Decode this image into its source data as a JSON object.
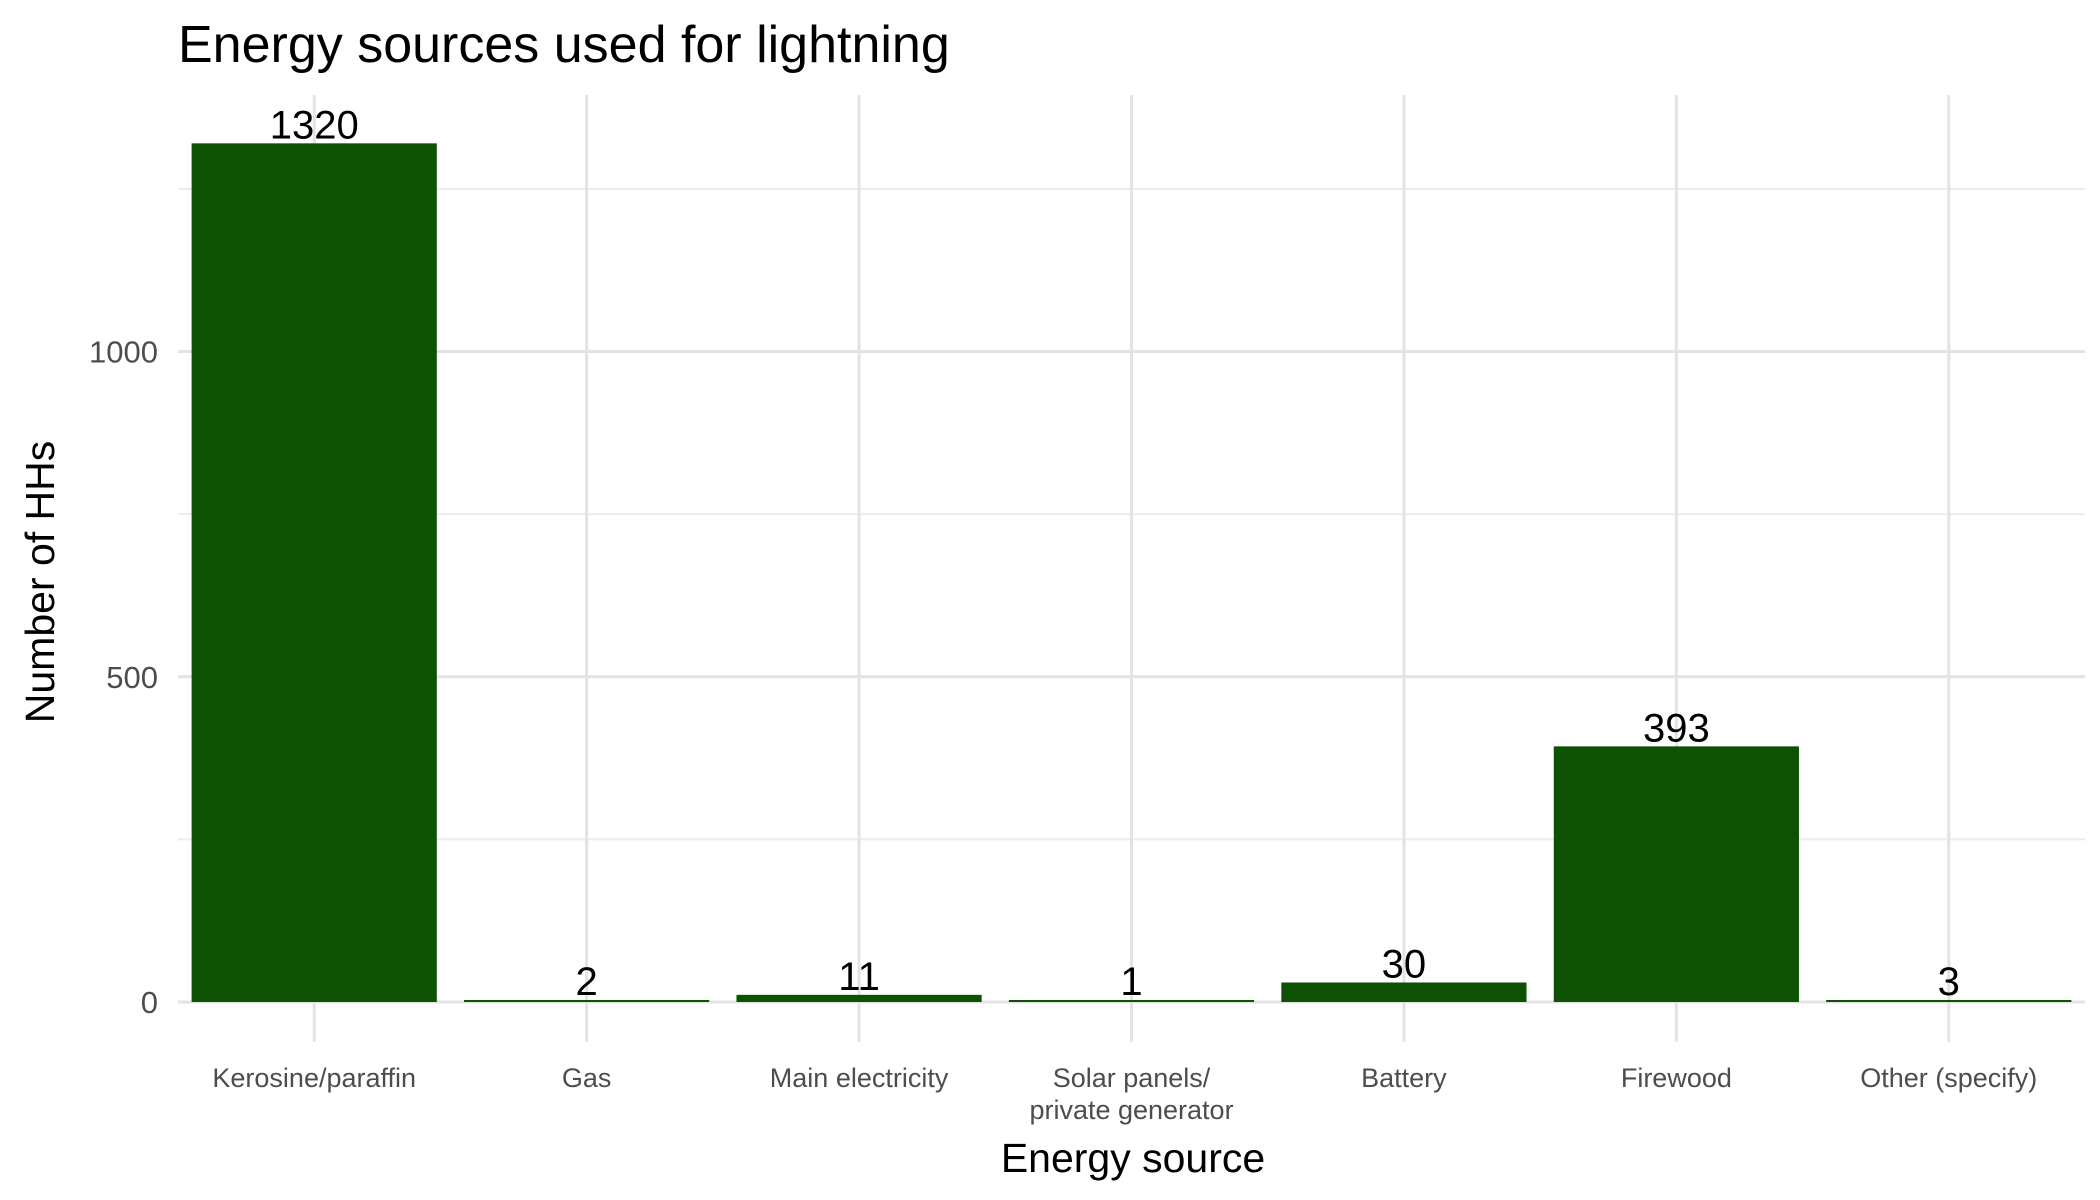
{
  "chart_data": {
    "type": "bar",
    "title": "Energy sources used for lightning",
    "xlabel": "Energy source",
    "ylabel": "Number of HHs",
    "categories": [
      [
        "Kerosine/paraffin"
      ],
      [
        "Gas"
      ],
      [
        "Main electricity"
      ],
      [
        "Solar panels/",
        "private generator"
      ],
      [
        "Battery"
      ],
      [
        "Firewood"
      ],
      [
        "Other (specify)"
      ]
    ],
    "values": [
      1320,
      2,
      11,
      1,
      30,
      393,
      3
    ],
    "data_labels": [
      "1320",
      "2",
      "11",
      "1",
      "30",
      "393",
      "3"
    ],
    "ylim": [
      0,
      1320
    ],
    "yticks": [
      0,
      500,
      1000
    ],
    "ytick_labels": [
      "0",
      "500",
      "1000"
    ],
    "grid": true,
    "legend": "none",
    "bar_color": "#0d5202"
  }
}
